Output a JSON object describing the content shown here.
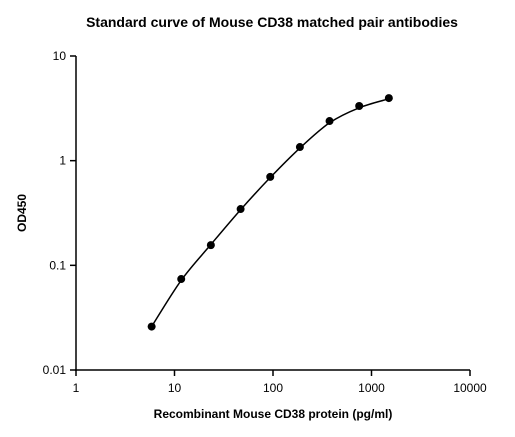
{
  "chart_data": {
    "type": "scatter",
    "title": "Standard curve of Mouse CD38 matched pair antibodies",
    "xlabel": "Recombinant Mouse CD38 protein (pg/ml)",
    "ylabel": "OD450",
    "x_scale": "log",
    "y_scale": "log",
    "xlim": [
      1,
      10000
    ],
    "xticks": [
      1,
      10,
      100,
      1000,
      10000
    ],
    "ylim": [
      0.01,
      10
    ],
    "yticks": [
      0.01,
      0.1,
      1,
      10
    ],
    "x": [
      5.86,
      11.7,
      23.4,
      46.9,
      93.75,
      187.5,
      375,
      750,
      1500
    ],
    "series": [
      {
        "color": "#000000",
        "values": [
          0.026,
          0.074,
          0.156,
          0.345,
          0.7,
          1.35,
          2.39,
          3.33,
          3.96
        ]
      }
    ],
    "fit": {
      "color": "#000000",
      "x": [
        5.86,
        11.7,
        23.4,
        46.9,
        93.75,
        187.5,
        375,
        750,
        1500
      ],
      "y": [
        0.026,
        0.072,
        0.158,
        0.34,
        0.69,
        1.32,
        2.3,
        3.2,
        3.9
      ]
    }
  }
}
